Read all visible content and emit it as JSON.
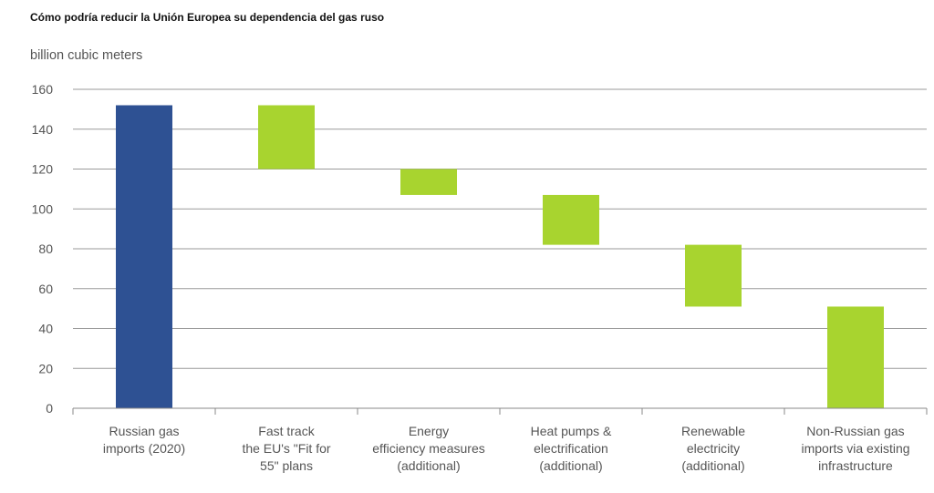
{
  "title": "Cómo podría reducir la Unión Europea su dependencia del gas ruso",
  "chart_data": {
    "type": "bar",
    "subtype": "waterfall",
    "ylabel": "billion cubic meters",
    "ylim": [
      0,
      160
    ],
    "yticks": [
      0,
      20,
      40,
      60,
      80,
      100,
      120,
      140,
      160
    ],
    "grid": true,
    "categories": [
      [
        "Russian gas",
        "imports (2020)"
      ],
      [
        "Fast track",
        "the EU's \"Fit for",
        "55\" plans"
      ],
      [
        "Energy",
        "efficiency measures",
        "(additional)"
      ],
      [
        "Heat pumps &",
        "electrification",
        "(additional)"
      ],
      [
        "Renewable",
        "electricity",
        "(additional)"
      ],
      [
        "Non-Russian gas",
        "imports via existing",
        "infrastructure"
      ]
    ],
    "bars": [
      {
        "start": 0,
        "end": 152,
        "color": "#2e5193"
      },
      {
        "start": 120,
        "end": 152,
        "color": "#a8d42f"
      },
      {
        "start": 107,
        "end": 120,
        "color": "#a8d42f"
      },
      {
        "start": 82,
        "end": 107,
        "color": "#a8d42f"
      },
      {
        "start": 51,
        "end": 82,
        "color": "#a8d42f"
      },
      {
        "start": 0,
        "end": 51,
        "color": "#a8d42f"
      }
    ],
    "gridline_color": "#9a9a9a",
    "axis_color": "#888888"
  }
}
